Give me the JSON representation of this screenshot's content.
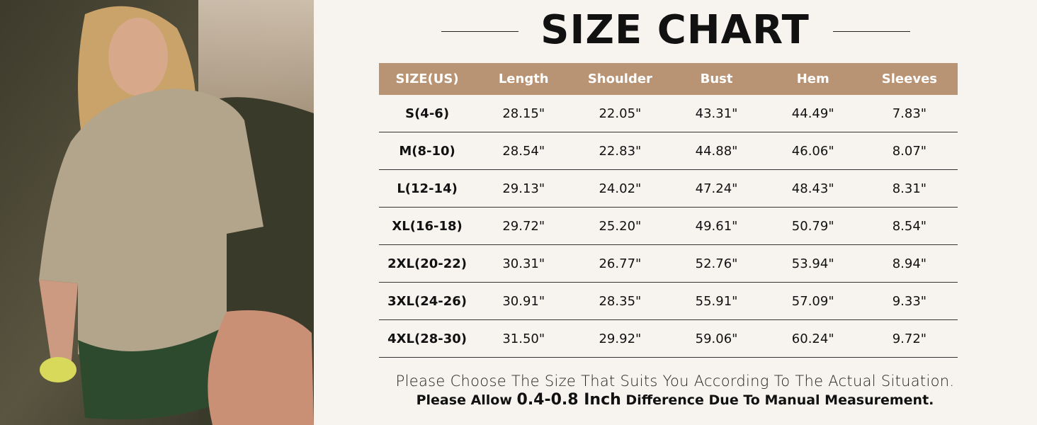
{
  "header": {
    "title": "SIZE CHART"
  },
  "table": {
    "columns": [
      "SIZE(US)",
      "Length",
      "Shoulder",
      "Bust",
      "Hem",
      "Sleeves"
    ],
    "rows": [
      [
        "S(4-6)",
        "28.15\"",
        "22.05\"",
        "43.31\"",
        "44.49\"",
        "7.83\""
      ],
      [
        "M(8-10)",
        "28.54\"",
        "22.83\"",
        "44.88\"",
        "46.06\"",
        "8.07\""
      ],
      [
        "L(12-14)",
        "29.13\"",
        "24.02\"",
        "47.24\"",
        "48.43\"",
        "8.31\""
      ],
      [
        "XL(16-18)",
        "29.72\"",
        "25.20\"",
        "49.61\"",
        "50.79\"",
        "8.54\""
      ],
      [
        "2XL(20-22)",
        "30.31\"",
        "26.77\"",
        "52.76\"",
        "53.94\"",
        "8.94\""
      ],
      [
        "3XL(24-26)",
        "30.91\"",
        "28.35\"",
        "55.91\"",
        "57.09\"",
        "9.33\""
      ],
      [
        "4XL(28-30)",
        "31.50\"",
        "29.92\"",
        "59.06\"",
        "60.24\"",
        "9.72\""
      ]
    ]
  },
  "notes": {
    "line1": "Please Choose The Size That Suits You According To The Actual Situation.",
    "line2": [
      "Please Allow ",
      "0.4-0.8 Inch",
      " Difference Due To Manual Measurement."
    ]
  }
}
